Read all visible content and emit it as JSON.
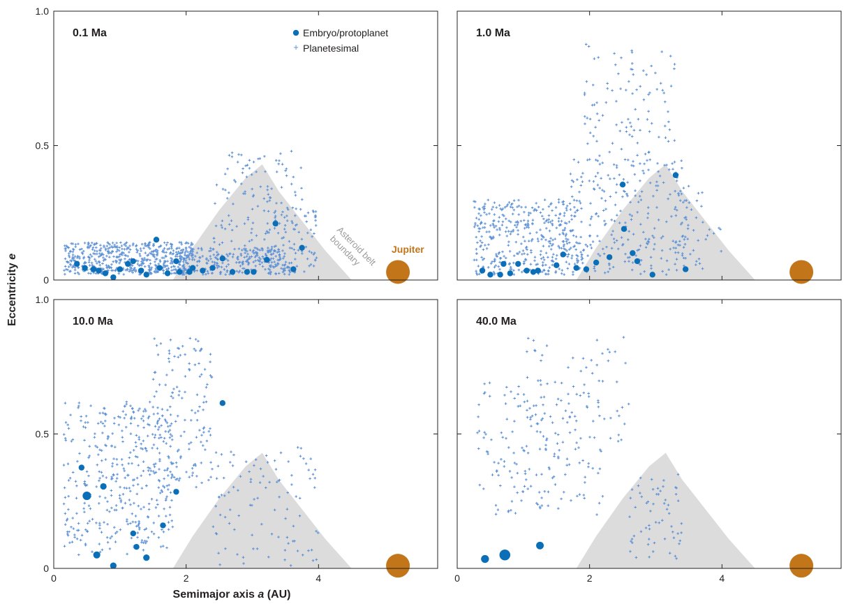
{
  "figure": {
    "xlabel": "Semimajor axis ",
    "xlabel_italic": "a",
    "xlabel_unit": " (AU)",
    "ylabel": "Eccentricity ",
    "ylabel_italic": "e"
  },
  "colors": {
    "planetesimal": "#5b8fd4",
    "embryo": "#0b6fb8",
    "belt": "#dcdcdd",
    "belt_label": "#9a9a9a",
    "jupiter": "#c27519",
    "axis": "#231f20"
  },
  "legend": {
    "embryo_label": "Embryo/protoplanet",
    "planetesimal_label": "Planetesimal"
  },
  "annotations": {
    "belt_line1": "Asteroid belt",
    "belt_line2": "boundary",
    "jupiter": "Jupiter"
  },
  "axes": {
    "x_ticks": [
      0,
      2,
      4
    ],
    "x_tick_labels": [
      "0",
      "2",
      "4"
    ],
    "y_ticks": [
      0,
      0.5,
      1.0
    ],
    "y_tick_labels": [
      "0",
      "0.5",
      "1.0"
    ]
  },
  "chart_data": [
    {
      "type": "scatter",
      "label": "0.1 Ma",
      "xlim": [
        0,
        5.8
      ],
      "ylim": [
        0,
        1.0
      ],
      "belt_boundary": [
        [
          1.8,
          0
        ],
        [
          2.1,
          0.12
        ],
        [
          2.5,
          0.26
        ],
        [
          2.9,
          0.38
        ],
        [
          3.15,
          0.43
        ],
        [
          3.4,
          0.33
        ],
        [
          3.75,
          0.22
        ],
        [
          4.1,
          0.11
        ],
        [
          4.5,
          0
        ]
      ],
      "jupiter": {
        "x": 5.2,
        "e": 0.03
      },
      "embryos": [
        {
          "x": 0.35,
          "e": 0.06,
          "size": 1
        },
        {
          "x": 0.47,
          "e": 0.045,
          "size": 1
        },
        {
          "x": 0.6,
          "e": 0.04,
          "size": 1
        },
        {
          "x": 0.68,
          "e": 0.035,
          "size": 1
        },
        {
          "x": 0.78,
          "e": 0.025,
          "size": 1
        },
        {
          "x": 0.9,
          "e": 0.01,
          "size": 1
        },
        {
          "x": 1.0,
          "e": 0.04,
          "size": 1
        },
        {
          "x": 1.12,
          "e": 0.06,
          "size": 1
        },
        {
          "x": 1.2,
          "e": 0.07,
          "size": 1
        },
        {
          "x": 1.32,
          "e": 0.035,
          "size": 1
        },
        {
          "x": 1.4,
          "e": 0.02,
          "size": 1
        },
        {
          "x": 1.55,
          "e": 0.15,
          "size": 1
        },
        {
          "x": 1.6,
          "e": 0.045,
          "size": 1
        },
        {
          "x": 1.72,
          "e": 0.025,
          "size": 1
        },
        {
          "x": 1.85,
          "e": 0.07,
          "size": 1
        },
        {
          "x": 1.9,
          "e": 0.03,
          "size": 1
        },
        {
          "x": 2.05,
          "e": 0.03,
          "size": 1
        },
        {
          "x": 2.1,
          "e": 0.045,
          "size": 1
        },
        {
          "x": 2.25,
          "e": 0.035,
          "size": 1
        },
        {
          "x": 2.4,
          "e": 0.045,
          "size": 1
        },
        {
          "x": 2.55,
          "e": 0.08,
          "size": 1
        },
        {
          "x": 2.7,
          "e": 0.03,
          "size": 1
        },
        {
          "x": 2.92,
          "e": 0.03,
          "size": 1
        },
        {
          "x": 3.02,
          "e": 0.03,
          "size": 1
        },
        {
          "x": 3.22,
          "e": 0.075,
          "size": 1
        },
        {
          "x": 3.35,
          "e": 0.21,
          "size": 1
        },
        {
          "x": 3.62,
          "e": 0.04,
          "size": 1
        },
        {
          "x": 3.75,
          "e": 0.12,
          "size": 1
        }
      ],
      "planetesimals": {
        "count": 1000,
        "groups": [
          {
            "x": [
              0.15,
              2.1
            ],
            "e": [
              0.02,
              0.14
            ],
            "weight": 0.55
          },
          {
            "x": [
              1.9,
              3.6
            ],
            "e": [
              0.02,
              0.12
            ],
            "weight": 0.25
          },
          {
            "x": [
              2.4,
              3.8
            ],
            "e": [
              0.12,
              0.48
            ],
            "weight": 0.12
          },
          {
            "x": [
              3.2,
              4.0
            ],
            "e": [
              0.02,
              0.28
            ],
            "weight": 0.08
          }
        ]
      }
    },
    {
      "type": "scatter",
      "label": "1.0 Ma",
      "xlim": [
        0,
        5.8
      ],
      "ylim": [
        0,
        1.0
      ],
      "belt_boundary": [
        [
          1.8,
          0
        ],
        [
          2.1,
          0.12
        ],
        [
          2.5,
          0.26
        ],
        [
          2.9,
          0.38
        ],
        [
          3.15,
          0.43
        ],
        [
          3.4,
          0.33
        ],
        [
          3.75,
          0.22
        ],
        [
          4.1,
          0.11
        ],
        [
          4.5,
          0
        ]
      ],
      "jupiter": {
        "x": 5.2,
        "e": 0.03
      },
      "embryos": [
        {
          "x": 0.38,
          "e": 0.035,
          "size": 1
        },
        {
          "x": 0.5,
          "e": 0.02,
          "size": 1
        },
        {
          "x": 0.65,
          "e": 0.02,
          "size": 1
        },
        {
          "x": 0.7,
          "e": 0.06,
          "size": 1
        },
        {
          "x": 0.8,
          "e": 0.025,
          "size": 1
        },
        {
          "x": 0.92,
          "e": 0.06,
          "size": 1
        },
        {
          "x": 1.05,
          "e": 0.035,
          "size": 1
        },
        {
          "x": 1.15,
          "e": 0.03,
          "size": 1
        },
        {
          "x": 1.22,
          "e": 0.035,
          "size": 1
        },
        {
          "x": 1.5,
          "e": 0.055,
          "size": 1
        },
        {
          "x": 1.6,
          "e": 0.095,
          "size": 1
        },
        {
          "x": 1.8,
          "e": 0.045,
          "size": 1
        },
        {
          "x": 1.95,
          "e": 0.04,
          "size": 1
        },
        {
          "x": 2.1,
          "e": 0.065,
          "size": 1
        },
        {
          "x": 2.3,
          "e": 0.085,
          "size": 1
        },
        {
          "x": 2.5,
          "e": 0.355,
          "size": 1
        },
        {
          "x": 2.52,
          "e": 0.19,
          "size": 1
        },
        {
          "x": 2.65,
          "e": 0.1,
          "size": 1
        },
        {
          "x": 2.72,
          "e": 0.07,
          "size": 1
        },
        {
          "x": 2.95,
          "e": 0.02,
          "size": 1
        },
        {
          "x": 3.3,
          "e": 0.39,
          "size": 1
        },
        {
          "x": 3.45,
          "e": 0.04,
          "size": 1
        }
      ],
      "planetesimals": {
        "count": 800,
        "groups": [
          {
            "x": [
              0.25,
              1.9
            ],
            "e": [
              0.02,
              0.3
            ],
            "weight": 0.5
          },
          {
            "x": [
              1.7,
              3.5
            ],
            "e": [
              0.02,
              0.45
            ],
            "weight": 0.33
          },
          {
            "x": [
              1.9,
              3.3
            ],
            "e": [
              0.45,
              0.88
            ],
            "weight": 0.12
          },
          {
            "x": [
              3.3,
              4.0
            ],
            "e": [
              0.03,
              0.35
            ],
            "weight": 0.05
          }
        ]
      }
    },
    {
      "type": "scatter",
      "label": "10.0 Ma",
      "xlim": [
        0,
        5.8
      ],
      "ylim": [
        0,
        1.0
      ],
      "belt_boundary": [
        [
          1.8,
          0
        ],
        [
          2.1,
          0.12
        ],
        [
          2.5,
          0.26
        ],
        [
          2.9,
          0.38
        ],
        [
          3.15,
          0.43
        ],
        [
          3.4,
          0.33
        ],
        [
          3.75,
          0.22
        ],
        [
          4.1,
          0.11
        ],
        [
          4.5,
          0
        ]
      ],
      "jupiter": {
        "x": 5.2,
        "e": 0.01
      },
      "embryos": [
        {
          "x": 0.42,
          "e": 0.375,
          "size": 1
        },
        {
          "x": 0.5,
          "e": 0.27,
          "size": 1.45
        },
        {
          "x": 0.65,
          "e": 0.05,
          "size": 1.2
        },
        {
          "x": 0.75,
          "e": 0.305,
          "size": 1.1
        },
        {
          "x": 0.9,
          "e": 0.01,
          "size": 1.1
        },
        {
          "x": 1.2,
          "e": 0.13,
          "size": 1
        },
        {
          "x": 1.25,
          "e": 0.08,
          "size": 1
        },
        {
          "x": 1.4,
          "e": 0.04,
          "size": 1.1
        },
        {
          "x": 1.65,
          "e": 0.16,
          "size": 1
        },
        {
          "x": 1.85,
          "e": 0.285,
          "size": 1
        },
        {
          "x": 2.55,
          "e": 0.615,
          "size": 1
        }
      ],
      "planetesimals": {
        "count": 640,
        "groups": [
          {
            "x": [
              0.15,
              1.8
            ],
            "e": [
              0.05,
              0.62
            ],
            "weight": 0.62
          },
          {
            "x": [
              1.5,
              2.4
            ],
            "e": [
              0.3,
              0.86
            ],
            "weight": 0.22
          },
          {
            "x": [
              2.4,
              4.0
            ],
            "e": [
              0.01,
              0.45
            ],
            "weight": 0.16
          }
        ]
      }
    },
    {
      "type": "scatter",
      "label": "40.0 Ma",
      "xlim": [
        0,
        5.8
      ],
      "ylim": [
        0,
        1.0
      ],
      "belt_boundary": [
        [
          1.8,
          0
        ],
        [
          2.1,
          0.12
        ],
        [
          2.5,
          0.26
        ],
        [
          2.9,
          0.38
        ],
        [
          3.15,
          0.43
        ],
        [
          3.4,
          0.33
        ],
        [
          3.75,
          0.22
        ],
        [
          4.1,
          0.11
        ],
        [
          4.5,
          0
        ]
      ],
      "jupiter": {
        "x": 5.2,
        "e": 0.01
      },
      "embryos": [
        {
          "x": 0.42,
          "e": 0.035,
          "size": 1.35
        },
        {
          "x": 0.72,
          "e": 0.05,
          "size": 1.85
        },
        {
          "x": 1.25,
          "e": 0.085,
          "size": 1.3
        }
      ],
      "planetesimals": {
        "count": 300,
        "groups": [
          {
            "x": [
              0.3,
              2.2
            ],
            "e": [
              0.2,
              0.7
            ],
            "weight": 0.6
          },
          {
            "x": [
              1.0,
              2.6
            ],
            "e": [
              0.4,
              0.86
            ],
            "weight": 0.2
          },
          {
            "x": [
              2.6,
              3.4
            ],
            "e": [
              0.03,
              0.35
            ],
            "weight": 0.2
          }
        ]
      }
    }
  ]
}
